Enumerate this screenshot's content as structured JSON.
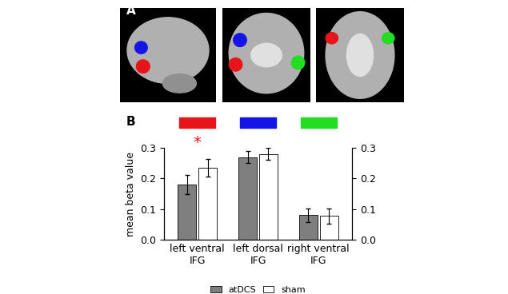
{
  "panel_labels": [
    "A",
    "B"
  ],
  "chart_data": {
    "type": "bar",
    "categories": [
      "left ventral\nIFG",
      "left dorsal\nIFG",
      "right ventral\nIFG"
    ],
    "colors": [
      "#e8141b",
      "#1414e6",
      "#22dd22"
    ],
    "y_label": "mean beta value",
    "ylim": [
      0,
      0.3
    ],
    "yticks": [
      0.0,
      0.1,
      0.2,
      0.3
    ],
    "legend": "lower center",
    "series": [
      {
        "name": "atDCS",
        "color": "#7f7f7f",
        "values": [
          0.18,
          0.27,
          0.08
        ],
        "errors": [
          0.032,
          0.02,
          0.022
        ]
      },
      {
        "name": "sham",
        "color": "#ffffff",
        "values": [
          0.235,
          0.28,
          0.078
        ],
        "errors": [
          0.028,
          0.02,
          0.025
        ]
      }
    ],
    "annotations": [
      {
        "text": "*",
        "category": 0,
        "color": "#e8141b"
      }
    ]
  }
}
